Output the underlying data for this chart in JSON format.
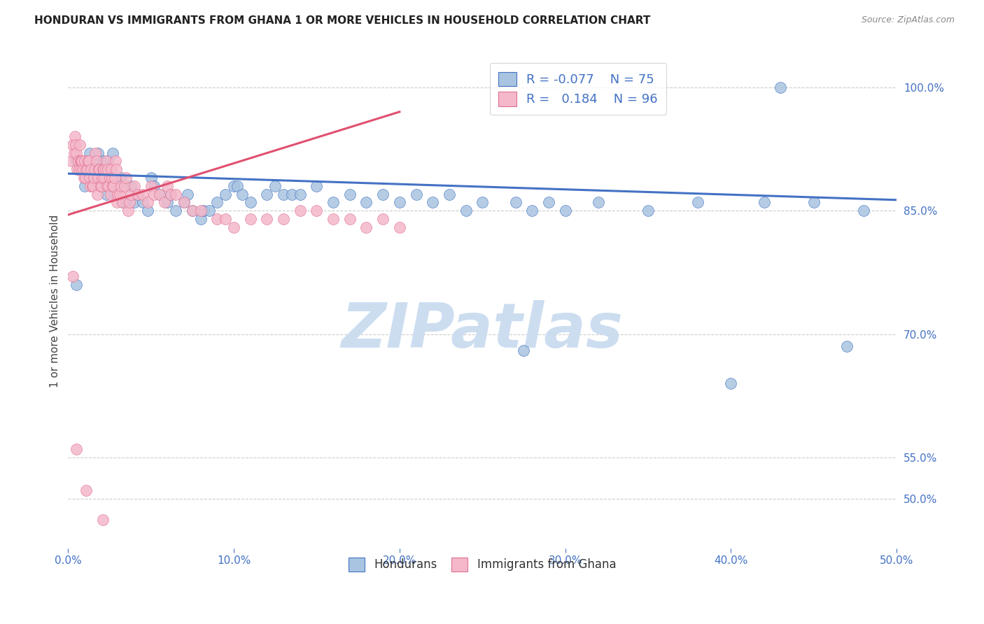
{
  "title": "HONDURAN VS IMMIGRANTS FROM GHANA 1 OR MORE VEHICLES IN HOUSEHOLD CORRELATION CHART",
  "source": "Source: ZipAtlas.com",
  "ylabel": "1 or more Vehicles in Household",
  "yticks": [
    50.0,
    55.0,
    70.0,
    85.0,
    100.0
  ],
  "ytick_labels": [
    "50.0%",
    "55.0%",
    "70.0%",
    "85.0%",
    "100.0%"
  ],
  "xticks": [
    0.0,
    10.0,
    20.0,
    30.0,
    40.0,
    50.0
  ],
  "xtick_labels": [
    "0.0%",
    "10.0%",
    "20.0%",
    "30.0%",
    "40.0%",
    "50.0%"
  ],
  "xmin": 0.0,
  "xmax": 50.0,
  "ymin": 44.0,
  "ymax": 104.0,
  "legend_blue_R": "-0.077",
  "legend_blue_N": "75",
  "legend_pink_R": "0.184",
  "legend_pink_N": "96",
  "blue_color": "#a8c4e0",
  "blue_edge_color": "#4472c4",
  "pink_color": "#f4b8ca",
  "pink_edge_color": "#e07090",
  "blue_line_color": "#4472c4",
  "pink_line_color": "#e05070",
  "watermark": "ZIPatlas",
  "watermark_color": "#ccddf0",
  "grid_color": "#cccccc",
  "axis_color": "#4472c4",
  "title_color": "#222222",
  "source_color": "#888888",
  "blue_scatter_x": [
    0.5,
    0.5,
    1.0,
    1.2,
    1.3,
    1.5,
    1.6,
    1.7,
    1.8,
    2.0,
    2.1,
    2.2,
    2.3,
    2.4,
    2.5,
    2.6,
    2.7,
    2.8,
    3.0,
    3.2,
    3.3,
    3.5,
    3.8,
    4.0,
    4.2,
    4.5,
    4.8,
    5.0,
    5.2,
    5.5,
    6.0,
    6.2,
    6.5,
    7.0,
    7.2,
    7.5,
    8.0,
    8.2,
    8.5,
    9.0,
    9.5,
    10.0,
    10.2,
    10.5,
    11.0,
    12.0,
    12.5,
    13.0,
    13.5,
    14.0,
    15.0,
    16.0,
    17.0,
    18.0,
    19.0,
    20.0,
    21.0,
    22.0,
    23.0,
    24.0,
    25.0,
    27.0,
    27.5,
    28.0,
    29.0,
    30.0,
    32.0,
    35.0,
    38.0,
    40.0,
    42.0,
    43.0,
    45.0,
    47.0,
    48.0
  ],
  "blue_scatter_y": [
    76.0,
    91.0,
    88.0,
    90.0,
    92.0,
    89.0,
    91.0,
    89.0,
    92.0,
    88.0,
    91.0,
    90.0,
    87.0,
    91.0,
    89.0,
    88.0,
    92.0,
    87.0,
    88.0,
    89.0,
    86.0,
    86.0,
    88.0,
    86.0,
    87.0,
    86.0,
    85.0,
    89.0,
    88.0,
    87.0,
    86.0,
    87.0,
    85.0,
    86.0,
    87.0,
    85.0,
    84.0,
    85.0,
    85.0,
    86.0,
    87.0,
    88.0,
    88.0,
    87.0,
    86.0,
    87.0,
    88.0,
    87.0,
    87.0,
    87.0,
    88.0,
    86.0,
    87.0,
    86.0,
    87.0,
    86.0,
    87.0,
    86.0,
    87.0,
    85.0,
    86.0,
    86.0,
    68.0,
    85.0,
    86.0,
    85.0,
    86.0,
    85.0,
    86.0,
    64.0,
    86.0,
    100.0,
    86.0,
    68.5,
    85.0
  ],
  "pink_scatter_x": [
    0.2,
    0.3,
    0.35,
    0.4,
    0.45,
    0.5,
    0.55,
    0.6,
    0.65,
    0.7,
    0.75,
    0.8,
    0.8,
    0.85,
    0.9,
    0.95,
    1.0,
    1.05,
    1.08,
    1.1,
    1.15,
    1.2,
    1.25,
    1.3,
    1.35,
    1.4,
    1.45,
    1.5,
    1.55,
    1.6,
    1.65,
    1.7,
    1.75,
    1.8,
    1.85,
    1.9,
    1.95,
    2.0,
    2.05,
    2.08,
    2.1,
    2.15,
    2.2,
    2.25,
    2.3,
    2.35,
    2.4,
    2.45,
    2.5,
    2.55,
    2.6,
    2.65,
    2.7,
    2.75,
    2.8,
    2.85,
    2.9,
    2.95,
    3.0,
    3.1,
    3.2,
    3.3,
    3.4,
    3.5,
    3.6,
    3.7,
    3.8,
    4.0,
    4.2,
    4.5,
    4.8,
    5.0,
    5.2,
    5.5,
    5.8,
    6.0,
    6.2,
    6.5,
    7.0,
    7.5,
    8.0,
    9.0,
    9.5,
    10.0,
    11.0,
    12.0,
    13.0,
    14.0,
    15.0,
    16.0,
    17.0,
    18.0,
    19.0,
    20.0,
    0.3,
    0.5
  ],
  "pink_scatter_y": [
    91.0,
    93.0,
    92.0,
    94.0,
    93.0,
    92.0,
    90.0,
    91.0,
    90.0,
    93.0,
    91.0,
    91.0,
    90.0,
    91.0,
    90.0,
    89.0,
    91.0,
    89.0,
    51.0,
    90.0,
    90.0,
    91.0,
    91.0,
    89.0,
    88.0,
    90.0,
    88.0,
    88.0,
    89.0,
    90.0,
    92.0,
    91.0,
    87.0,
    89.0,
    90.0,
    90.0,
    88.0,
    88.0,
    89.0,
    47.5,
    90.0,
    90.0,
    89.0,
    90.0,
    91.0,
    88.0,
    90.0,
    88.0,
    89.0,
    87.0,
    90.0,
    89.0,
    88.0,
    88.0,
    89.0,
    91.0,
    90.0,
    86.0,
    87.0,
    87.0,
    88.0,
    86.0,
    88.0,
    89.0,
    85.0,
    86.0,
    87.0,
    88.0,
    87.0,
    87.0,
    86.0,
    88.0,
    87.0,
    87.0,
    86.0,
    88.0,
    87.0,
    87.0,
    86.0,
    85.0,
    85.0,
    84.0,
    84.0,
    83.0,
    84.0,
    84.0,
    84.0,
    85.0,
    85.0,
    84.0,
    84.0,
    83.0,
    84.0,
    83.0,
    77.0,
    56.0
  ],
  "blue_trendline_x": [
    0.0,
    50.0
  ],
  "blue_trendline_y": [
    89.5,
    86.3
  ],
  "pink_trendline_x": [
    0.0,
    20.0
  ],
  "pink_trendline_y": [
    84.5,
    97.0
  ],
  "title_fontsize": 11,
  "label_fontsize": 11,
  "tick_fontsize": 11
}
